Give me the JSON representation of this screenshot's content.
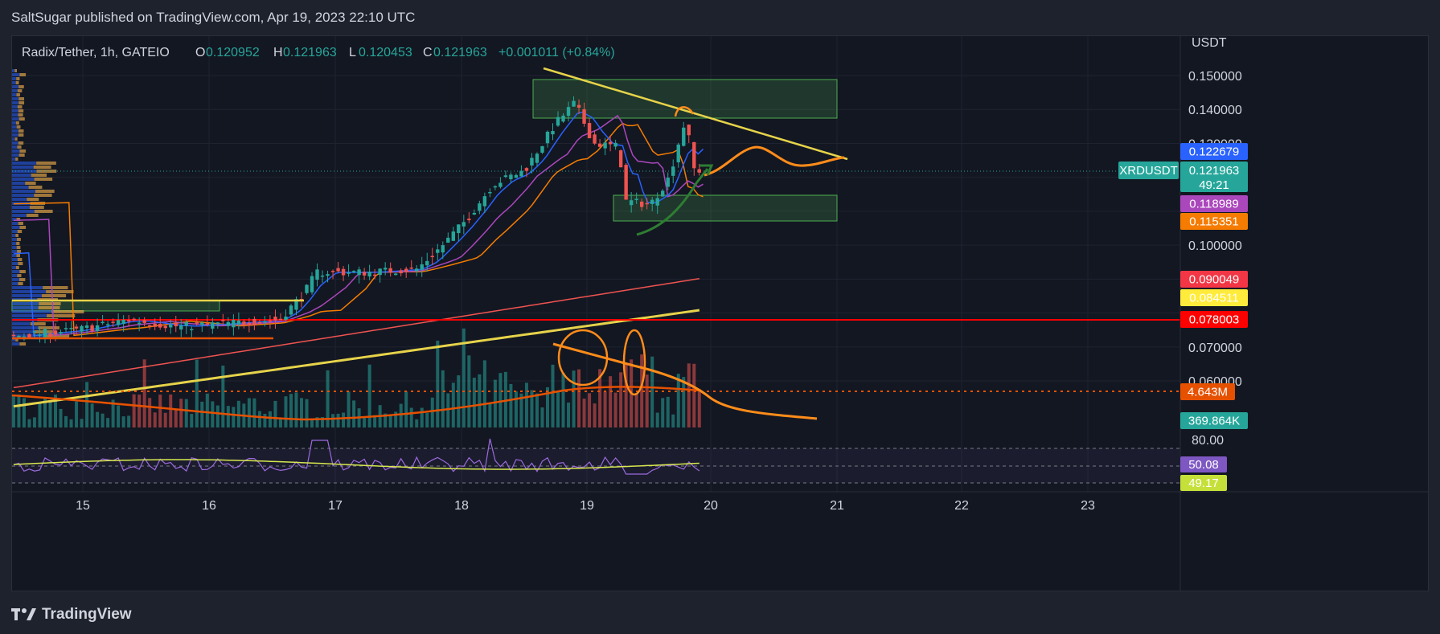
{
  "header": {
    "publish_line": "SaltSugar published on TradingView.com, Apr 19, 2023 22:10 UTC"
  },
  "legend": {
    "symbol": "Radix/Tether, 1h, GATEIO",
    "o_label": "O",
    "o_value": "0.120952",
    "h_label": "H",
    "h_value": "0.121963",
    "l_label": "L",
    "l_value": "0.120453",
    "c_label": "C",
    "c_value": "0.121963",
    "change": "+0.001011 (+0.84%)"
  },
  "price_axis": {
    "currency": "USDT",
    "ticks": [
      "0.150000",
      "0.140000",
      "0.130000",
      "0.100000",
      "0.070000",
      "0.060000"
    ],
    "tick_values": [
      0.15,
      0.14,
      0.13,
      0.1,
      0.07,
      0.06
    ]
  },
  "badges": {
    "ema_blue": {
      "text": "0.122679",
      "color": "#2962ff"
    },
    "symbol_tag": {
      "text": "XRDUSDT",
      "color": "#26a69a"
    },
    "last_price": {
      "text": "0.121963",
      "color": "#26a69a"
    },
    "countdown": {
      "text": "49:21",
      "color": "#26a69a"
    },
    "ema_purple": {
      "text": "0.118989",
      "color": "#ab47bc"
    },
    "ema_orange": {
      "text": "0.115351",
      "color": "#f57c00"
    },
    "ma_red": {
      "text": "0.090049",
      "color": "#f23645"
    },
    "ma_yellow": {
      "text": "0.084511",
      "color": "#ffeb3b"
    },
    "support_line": {
      "text": "0.078003",
      "color": "#ff0000"
    },
    "volume_ma": {
      "text": "4.643M",
      "color": "#e65100"
    },
    "volume_last": {
      "text": "369.864K",
      "color": "#26a69a"
    },
    "rsi_value": {
      "text": "50.08",
      "color": "#7e57c2"
    },
    "rsi_ma": {
      "text": "49.17",
      "color": "#c6e03a"
    }
  },
  "rsi_axis": {
    "top": "80.00"
  },
  "time_axis": {
    "labels": [
      "15",
      "16",
      "17",
      "18",
      "19",
      "20",
      "21",
      "22",
      "23"
    ]
  },
  "footer": {
    "logo_text": "TradingView"
  },
  "colors": {
    "background": "#131722",
    "up": "#26a69a",
    "down": "#ef5350",
    "grid": "#1f2330"
  },
  "chart_data": {
    "type": "candlestick",
    "symbol": "Radix/Tether",
    "interval": "1h",
    "exchange": "GATEIO",
    "x_labels": [
      "15",
      "16",
      "17",
      "18",
      "19",
      "20",
      "21",
      "22",
      "23"
    ],
    "ylim": [
      0.055,
      0.158
    ],
    "price_levels": {
      "support": 0.078003,
      "ma_red": 0.090049,
      "ma_yellow": 0.084511,
      "ema_blue": 0.122679,
      "ema_purple": 0.118989,
      "ema_orange": 0.115351
    },
    "closes_by_day": [
      {
        "day": "15",
        "close": 0.076
      },
      {
        "day": "16",
        "close": 0.077
      },
      {
        "day": "17",
        "close": 0.092
      },
      {
        "day": "18",
        "close": 0.12
      },
      {
        "day": "19",
        "close": 0.135
      },
      {
        "day": "20",
        "close": 0.121963
      }
    ],
    "rsi": {
      "last": 50.08,
      "ma": 49.17,
      "level": 80
    },
    "volume": {
      "last": "369.864K",
      "ma": "4.643M"
    }
  }
}
